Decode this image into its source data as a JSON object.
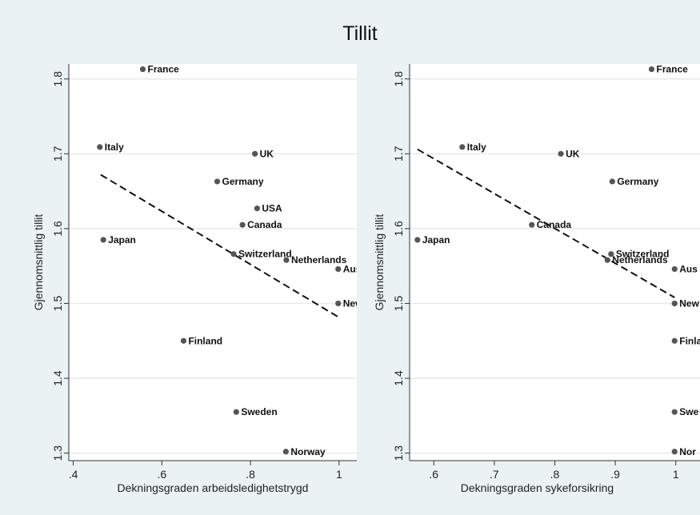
{
  "title": "Tillit",
  "chart_data": [
    {
      "type": "scatter",
      "title": "",
      "xlabel": "Dekningsgraden arbeidsledighetstrygd",
      "ylabel": "Gjennomsnittlig tillit",
      "xlim": [
        0.39,
        1.04
      ],
      "ylim": [
        1.29,
        1.82
      ],
      "xticks": [
        0.4,
        0.6,
        0.8,
        1.0
      ],
      "xtick_labels": [
        ".4",
        ".6",
        ".8",
        "1"
      ],
      "yticks": [
        1.3,
        1.4,
        1.5,
        1.6,
        1.7,
        1.8
      ],
      "ytick_labels": [
        "1.3",
        "1.4",
        "1.5",
        "1.6",
        "1.7",
        "1.8"
      ],
      "grid": true,
      "points": [
        {
          "label": "France",
          "x": 0.557,
          "y": 1.813
        },
        {
          "label": "Italy",
          "x": 0.46,
          "y": 1.709
        },
        {
          "label": "UK",
          "x": 0.81,
          "y": 1.7
        },
        {
          "label": "Germany",
          "x": 0.725,
          "y": 1.663
        },
        {
          "label": "USA",
          "x": 0.815,
          "y": 1.627
        },
        {
          "label": "Canada",
          "x": 0.782,
          "y": 1.605
        },
        {
          "label": "Japan",
          "x": 0.468,
          "y": 1.585
        },
        {
          "label": "Switzerland",
          "x": 0.762,
          "y": 1.566
        },
        {
          "label": "Netherlands",
          "x": 0.881,
          "y": 1.558
        },
        {
          "label": "Aus",
          "x": 0.998,
          "y": 1.546
        },
        {
          "label": "New",
          "x": 0.998,
          "y": 1.5
        },
        {
          "label": "Finland",
          "x": 0.649,
          "y": 1.45
        },
        {
          "label": "Sweden",
          "x": 0.768,
          "y": 1.355
        },
        {
          "label": "Norway",
          "x": 0.88,
          "y": 1.302
        }
      ],
      "fit_line": {
        "x": [
          0.462,
          0.998
        ],
        "y": [
          1.672,
          1.482
        ]
      }
    },
    {
      "type": "scatter",
      "title": "",
      "xlabel": "Dekningsgraden sykeforsikring",
      "ylabel": "Gjennomsnittlig tillit",
      "xlim": [
        0.56,
        1.04
      ],
      "ylim": [
        1.29,
        1.82
      ],
      "xticks": [
        0.6,
        0.7,
        0.8,
        0.9,
        1.0
      ],
      "xtick_labels": [
        ".6",
        ".7",
        ".8",
        ".9",
        "1"
      ],
      "yticks": [
        1.3,
        1.4,
        1.5,
        1.6,
        1.7,
        1.8
      ],
      "ytick_labels": [
        "1.3",
        "1.4",
        "1.5",
        "1.6",
        "1.7",
        "1.8"
      ],
      "grid": true,
      "points": [
        {
          "label": "France",
          "x": 0.96,
          "y": 1.813
        },
        {
          "label": "Italy",
          "x": 0.647,
          "y": 1.709
        },
        {
          "label": "UK",
          "x": 0.81,
          "y": 1.7
        },
        {
          "label": "Germany",
          "x": 0.895,
          "y": 1.663
        },
        {
          "label": "Canada",
          "x": 0.762,
          "y": 1.605
        },
        {
          "label": "Japan",
          "x": 0.573,
          "y": 1.585
        },
        {
          "label": "Switzerland",
          "x": 0.893,
          "y": 1.566
        },
        {
          "label": "Netherlands",
          "x": 0.887,
          "y": 1.558
        },
        {
          "label": "Aus",
          "x": 0.998,
          "y": 1.546
        },
        {
          "label": "New",
          "x": 0.998,
          "y": 1.5
        },
        {
          "label": "Finla",
          "x": 0.998,
          "y": 1.45
        },
        {
          "label": "Swe",
          "x": 0.998,
          "y": 1.355
        },
        {
          "label": "Nor",
          "x": 0.998,
          "y": 1.302
        }
      ],
      "fit_line": {
        "x": [
          0.573,
          0.998
        ],
        "y": [
          1.706,
          1.508
        ]
      }
    }
  ]
}
